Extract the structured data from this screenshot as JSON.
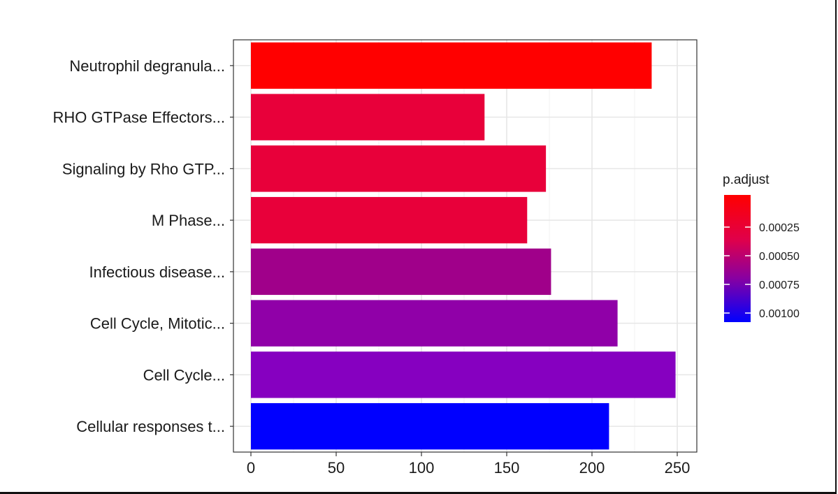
{
  "chart_data": {
    "type": "bar",
    "orientation": "horizontal",
    "categories": [
      "Neutrophil degranula...",
      "RHO GTPase Effectors...",
      "Signaling by Rho GTP...",
      "M Phase...",
      "Infectious disease...",
      "Cell Cycle, Mitotic...",
      "Cell Cycle...",
      "Cellular responses t..."
    ],
    "values": [
      235,
      137,
      173,
      162,
      176,
      215,
      249,
      210
    ],
    "colors": [
      "#ff0000",
      "#e8003a",
      "#e8003a",
      "#e8003a",
      "#a0008a",
      "#9000a8",
      "#8600c0",
      "#0000ff"
    ],
    "x_ticks": [
      "0",
      "50",
      "100",
      "150",
      "200",
      "250"
    ],
    "xlim": [
      0,
      262
    ],
    "grid": true,
    "legend": {
      "title": "p.adjust",
      "position": "right",
      "labels": [
        "0.00025",
        "0.00050",
        "0.00075",
        "0.00100"
      ],
      "gradient": [
        "#ff0000",
        "#0000ff"
      ]
    }
  }
}
